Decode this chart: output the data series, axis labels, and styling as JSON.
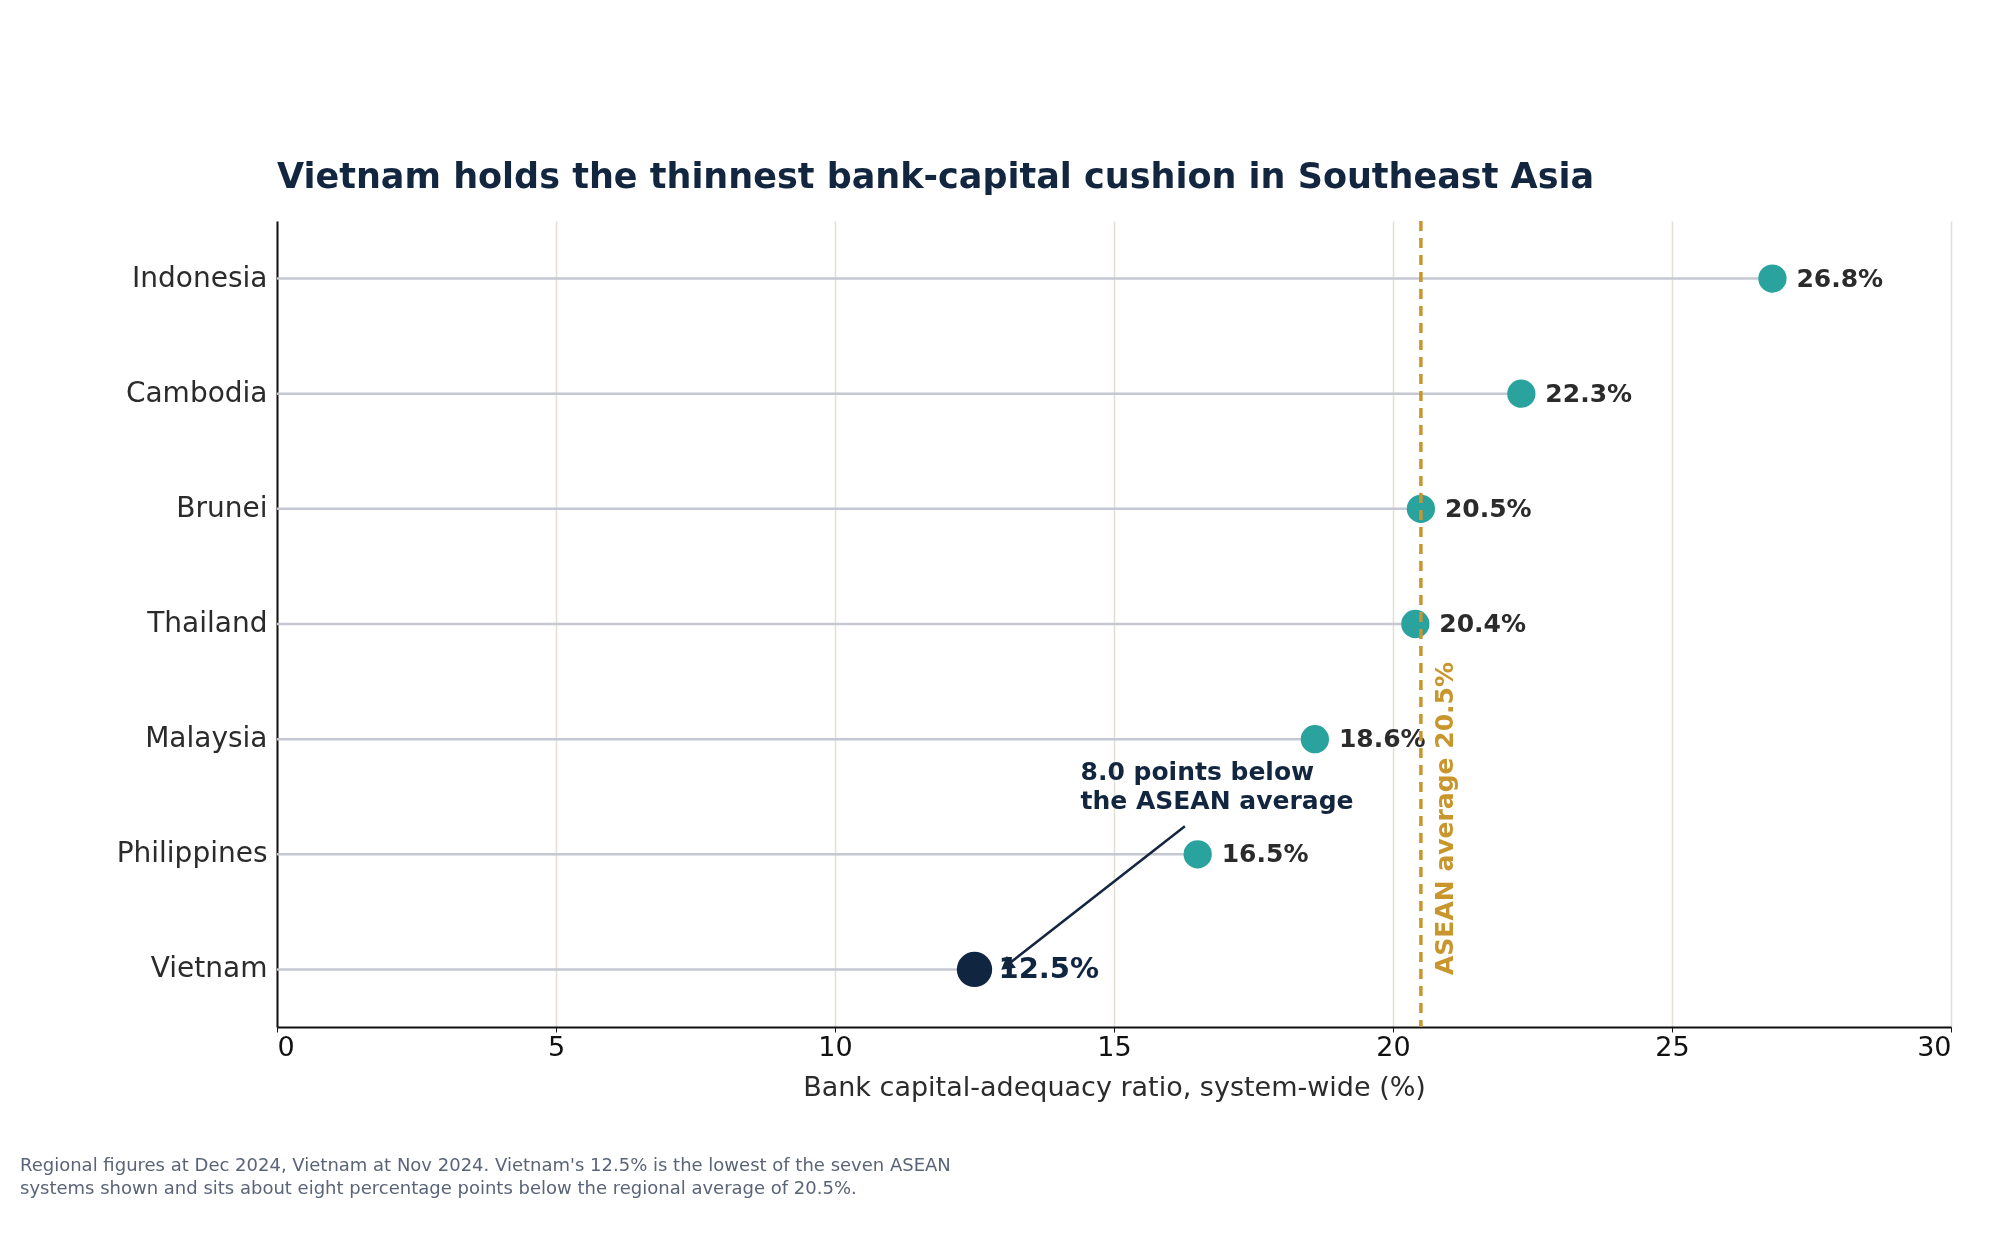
{
  "chart_data": {
    "type": "lollipop",
    "orientation": "horizontal",
    "title": "Vietnam holds the thinnest bank-capital cushion in Southeast Asia",
    "xlabel": "Bank capital-adequacy ratio, system-wide (%)",
    "categories": [
      "Indonesia",
      "Cambodia",
      "Brunei",
      "Thailand",
      "Malaysia",
      "Philippines",
      "Vietnam"
    ],
    "values": [
      26.8,
      22.3,
      20.5,
      20.4,
      18.6,
      16.5,
      12.5
    ],
    "colors": [
      "#2aa39e",
      "#2aa39e",
      "#2aa39e",
      "#2aa39e",
      "#2aa39e",
      "#2aa39e",
      "#0f2540"
    ],
    "value_labels": [
      "26.8%",
      "22.3%",
      "20.5%",
      "20.4%",
      "18.6%",
      "16.5%",
      "12.5%"
    ],
    "xlim": [
      0,
      30
    ],
    "xticks": [
      0,
      5,
      10,
      15,
      20,
      25,
      30
    ],
    "grid": "x",
    "legend": false,
    "ref_lines": [
      {
        "axis": "x",
        "value": 20.5,
        "label": "ASEAN average 20.5%",
        "color": "#c9962e",
        "line_style": "dashed"
      }
    ],
    "annotations": [
      "8.0 points below the ASEAN average",
      "Regional figures at Dec 2024, Vietnam at Nov 2024. Vietnam's 12.5% is the lowest of the seven ASEAN systems shown and sits about eight percentage points below the regional average of 20.5%."
    ]
  }
}
